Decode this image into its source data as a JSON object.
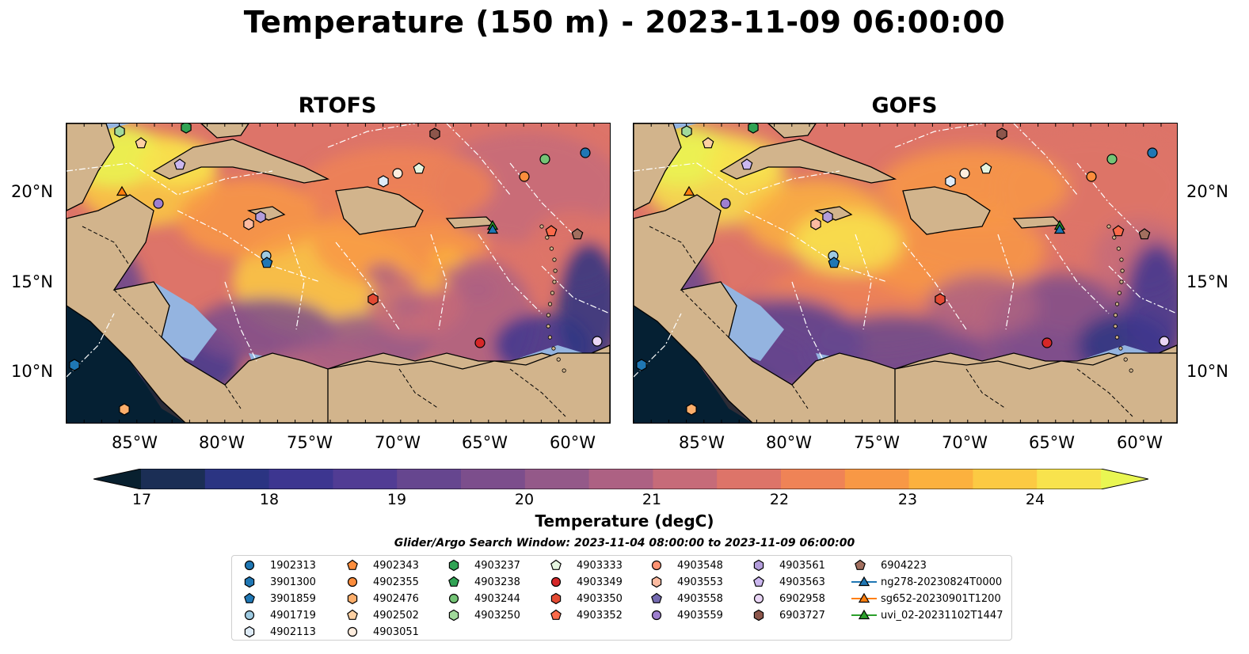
{
  "title": "Temperature (150 m) - 2023-11-09 06:00:00",
  "panels": [
    {
      "title": "RTOFS"
    },
    {
      "title": "GOFS"
    }
  ],
  "axes": {
    "lat_labels": [
      "20°N",
      "15°N",
      "10°N"
    ],
    "lon_labels": [
      "85°W",
      "80°W",
      "75°W",
      "70°W",
      "65°W",
      "60°W"
    ]
  },
  "colorbar": {
    "label": "Temperature (degC)",
    "ticks": [
      "17",
      "18",
      "19",
      "20",
      "21",
      "22",
      "23",
      "24"
    ],
    "range": [
      16.75,
      24.5
    ],
    "colors": [
      "#08202f",
      "#1b2e55",
      "#2b3482",
      "#3d3690",
      "#513c94",
      "#66468f",
      "#7c4e8c",
      "#945989",
      "#ad6183",
      "#c66b79",
      "#dd7469",
      "#ef8356",
      "#f89845",
      "#fcb13e",
      "#fcca43",
      "#f8e34d",
      "#e9f652"
    ]
  },
  "search_window": "Glider/Argo Search Window: 2023-11-04 08:00:00 to 2023-11-09 06:00:00",
  "legend": [
    {
      "label": "1902313",
      "marker": "circle",
      "color": "#1f77b4"
    },
    {
      "label": "3901300",
      "marker": "hexagon",
      "color": "#1f77b4"
    },
    {
      "label": "3901859",
      "marker": "pentagon",
      "color": "#1f77b4"
    },
    {
      "label": "4901719",
      "marker": "circle",
      "color": "#9ecae1"
    },
    {
      "label": "4902113",
      "marker": "hexagon",
      "color": "#deebf7"
    },
    {
      "label": "4902343",
      "marker": "pentagon",
      "color": "#fd8d3c"
    },
    {
      "label": "4902355",
      "marker": "circle",
      "color": "#fd8d3c"
    },
    {
      "label": "4902476",
      "marker": "hexagon",
      "color": "#fdae6b"
    },
    {
      "label": "4902502",
      "marker": "pentagon",
      "color": "#fdd0a2"
    },
    {
      "label": "4903051",
      "marker": "circle",
      "color": "#feedde"
    },
    {
      "label": "4903237",
      "marker": "hexagon",
      "color": "#31a354"
    },
    {
      "label": "4903238",
      "marker": "pentagon",
      "color": "#31a354"
    },
    {
      "label": "4903244",
      "marker": "circle",
      "color": "#74c476"
    },
    {
      "label": "4903250",
      "marker": "hexagon",
      "color": "#a1d99b"
    },
    {
      "label": "4903333",
      "marker": "pentagon",
      "color": "#e5f5e0"
    },
    {
      "label": "4903349",
      "marker": "circle",
      "color": "#d62728"
    },
    {
      "label": "4903350",
      "marker": "hexagon",
      "color": "#e34a33"
    },
    {
      "label": "4903352",
      "marker": "pentagon",
      "color": "#fb6a4a"
    },
    {
      "label": "4903548",
      "marker": "circle",
      "color": "#fc9272"
    },
    {
      "label": "4903553",
      "marker": "hexagon",
      "color": "#fcbba1"
    },
    {
      "label": "4903558",
      "marker": "pentagon",
      "color": "#756bb1"
    },
    {
      "label": "4903559",
      "marker": "circle",
      "color": "#9e7fcf"
    },
    {
      "label": "4903561",
      "marker": "hexagon",
      "color": "#b39ddb"
    },
    {
      "label": "4903563",
      "marker": "pentagon",
      "color": "#cbb7ef"
    },
    {
      "label": "6902958",
      "marker": "circle",
      "color": "#e9d5f5"
    },
    {
      "label": "6903727",
      "marker": "hexagon",
      "color": "#8c564b"
    },
    {
      "label": "6904223",
      "marker": "pentagon",
      "color": "#a26f5f"
    },
    {
      "label": "ng278-20230824T0000",
      "marker": "triangle-line",
      "color": "#1f77b4"
    },
    {
      "label": "sg652-20230901T1200",
      "marker": "triangle-line",
      "color": "#ff7f0e"
    },
    {
      "label": "uvi_02-20231102T1447",
      "marker": "triangle-line",
      "color": "#2ca02c"
    }
  ],
  "map_colors": {
    "land": "#d2b48c",
    "shelf_water": "#94b4e0",
    "border": "#000000"
  }
}
